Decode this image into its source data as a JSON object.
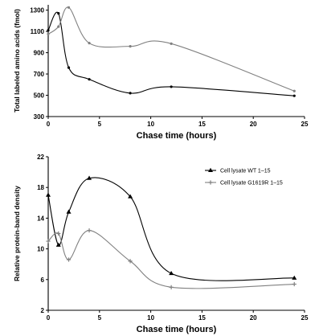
{
  "chart_data": [
    {
      "type": "line",
      "xlabel": "Chase time (hours)",
      "ylabel": "Total labeled amino acids (fmol)",
      "xlim": [
        0,
        25
      ],
      "ylim": [
        300,
        1350
      ],
      "xticks": [
        "0",
        "5",
        "10",
        "15",
        "20",
        "25"
      ],
      "yticks": [
        "300",
        "500",
        "700",
        "900",
        "1100",
        "1300"
      ],
      "grid": false,
      "series": [
        {
          "color": "#000000",
          "marker": "dot",
          "points": [
            [
              0,
              1110
            ],
            [
              1,
              1270
            ],
            [
              2,
              760
            ],
            [
              4,
              650
            ],
            [
              8,
              520
            ],
            [
              12,
              580
            ],
            [
              24,
              495
            ]
          ]
        },
        {
          "color": "#808080",
          "marker": "dot",
          "points": [
            [
              0,
              1075
            ],
            [
              1,
              1145
            ],
            [
              2,
              1325
            ],
            [
              4,
              990
            ],
            [
              8,
              960
            ],
            [
              12,
              985
            ],
            [
              24,
              540
            ]
          ]
        }
      ]
    },
    {
      "type": "line",
      "xlabel": "Chase time (hours)",
      "ylabel": "Relative protein-band density",
      "xlim": [
        0,
        25
      ],
      "ylim": [
        2,
        22
      ],
      "xticks": [
        "0",
        "5",
        "10",
        "15",
        "20",
        "25"
      ],
      "yticks": [
        "2",
        "6",
        "10",
        "14",
        "18",
        "22"
      ],
      "grid": false,
      "legend_position": "top-right",
      "series": [
        {
          "name": "Cell lysate WT 1–15",
          "color": "#000000",
          "marker": "triangle",
          "points": [
            [
              0,
              17.0
            ],
            [
              1,
              10.5
            ],
            [
              2,
              14.8
            ],
            [
              4,
              19.2
            ],
            [
              8,
              16.8
            ],
            [
              12,
              6.8
            ],
            [
              24,
              6.2
            ]
          ]
        },
        {
          "name": "Cell lysate G1619R 1–15",
          "color": "#808080",
          "marker": "cross",
          "points": [
            [
              0,
              11.0
            ],
            [
              1,
              12.0
            ],
            [
              2,
              8.6
            ],
            [
              4,
              12.4
            ],
            [
              8,
              8.4
            ],
            [
              12,
              5.0
            ],
            [
              24,
              5.4
            ]
          ]
        }
      ]
    }
  ]
}
